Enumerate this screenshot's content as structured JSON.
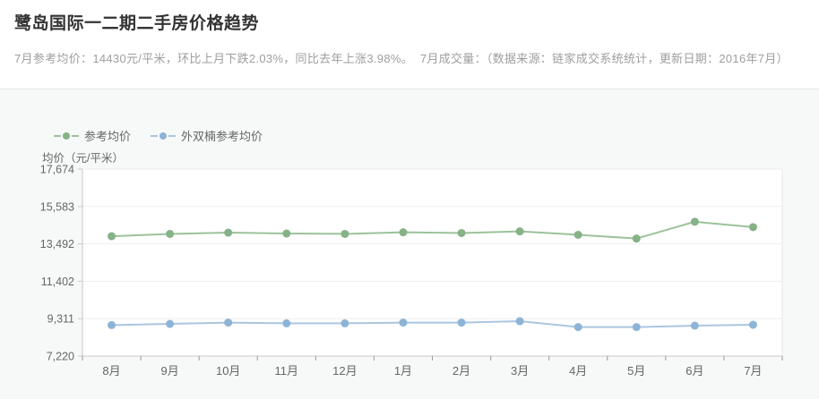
{
  "page": {
    "background": "#ffffff",
    "panel_background": "#f7f8f8",
    "divider_color": "#e6e6e6"
  },
  "header": {
    "title": "鹭岛国际一二期二手房价格趋势",
    "subtitle": "7月参考均价：14430元/平米，环比上月下跌2.03%，同比去年上涨3.98%。  7月成交量：（数据来源：链家成交系统统计，更新日期：2016年7月）"
  },
  "chart_data": {
    "type": "line",
    "title": "",
    "xlabel": "",
    "ylabel": "均价（元/平米）",
    "categories": [
      "8月",
      "9月",
      "10月",
      "11月",
      "12月",
      "1月",
      "2月",
      "3月",
      "4月",
      "5月",
      "6月",
      "7月"
    ],
    "series": [
      {
        "name": "参考均价",
        "line_color": "#9cc29b",
        "marker_color": "#85b286",
        "values": [
          13920,
          14050,
          14120,
          14070,
          14050,
          14140,
          14100,
          14190,
          14000,
          13790,
          14730,
          14430
        ]
      },
      {
        "name": "外双楠参考均价",
        "line_color": "#a9c6e0",
        "marker_color": "#8db4d6",
        "values": [
          8950,
          9020,
          9090,
          9050,
          9050,
          9090,
          9090,
          9170,
          8840,
          8840,
          8920,
          8970
        ]
      }
    ],
    "yticks": [
      17674,
      15583,
      13492,
      11402,
      9311,
      7220
    ],
    "ytick_labels": [
      "17,674",
      "15,583",
      "13,492",
      "11,402",
      "9,311",
      "7,220"
    ],
    "ylim": [
      7220,
      17674
    ],
    "grid": true,
    "legend_position": "top-left",
    "colors": {
      "grid_line": "#ededed",
      "axis_line": "#c9c9c9",
      "plot_border_right": "#e8e8e8",
      "tick_mark": "#999999",
      "tick_label": "#666666",
      "plot_background": "#ffffff"
    }
  }
}
